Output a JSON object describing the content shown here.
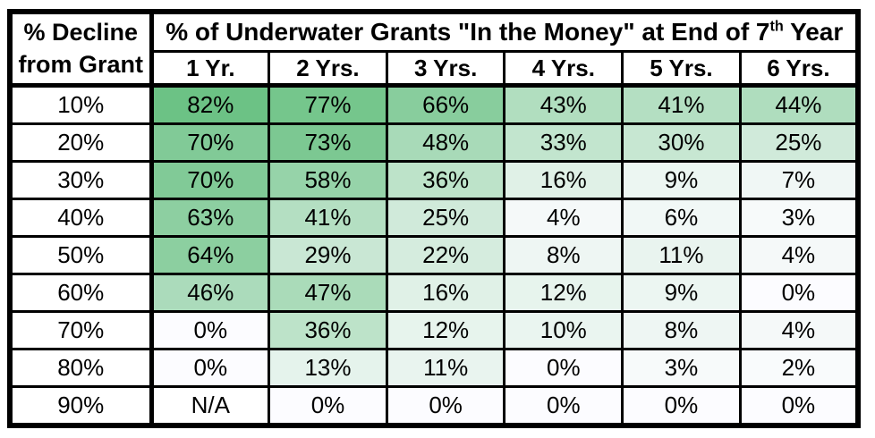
{
  "title_header": {
    "prefix": "% of Underwater Grants \"In the Money\" at End of 7",
    "superscript": "th",
    "suffix": " Year"
  },
  "corner_header": {
    "line1": "% Decline",
    "line2": "from Grant"
  },
  "col_headers": [
    "1 Yr.",
    "2 Yrs.",
    "3 Yrs.",
    "4 Yrs.",
    "5 Yrs.",
    "6 Yrs."
  ],
  "rows": [
    {
      "label": "10%",
      "values": [
        "82%",
        "77%",
        "66%",
        "43%",
        "41%",
        "44%"
      ],
      "colors": [
        "#6CC285",
        "#75C68C",
        "#88CD9D",
        "#B1DEBF",
        "#B4DFC2",
        "#AFDDBE"
      ]
    },
    {
      "label": "20%",
      "values": [
        "70%",
        "73%",
        "48%",
        "33%",
        "30%",
        "25%"
      ],
      "colors": [
        "#81CA97",
        "#7CC892",
        "#A8DAB8",
        "#C2E5CE",
        "#C7E7D2",
        "#D0EADA"
      ]
    },
    {
      "label": "30%",
      "values": [
        "70%",
        "58%",
        "36%",
        "16%",
        "9%",
        "7%"
      ],
      "colors": [
        "#81CA97",
        "#96D3A9",
        "#BDE3C9",
        "#E0F1E7",
        "#ECF6F2",
        "#F0F7F5"
      ]
    },
    {
      "label": "40%",
      "values": [
        "63%",
        "41%",
        "25%",
        "4%",
        "6%",
        "3%"
      ],
      "colors": [
        "#8DCFA1",
        "#B4DFC2",
        "#D0EADA",
        "#F5F9F9",
        "#F1F8F6",
        "#F7FAFA"
      ]
    },
    {
      "label": "50%",
      "values": [
        "64%",
        "29%",
        "22%",
        "8%",
        "11%",
        "4%"
      ],
      "colors": [
        "#8CCFA0",
        "#C9E7D4",
        "#D5ECDE",
        "#EEF6F3",
        "#E9F4EF",
        "#F5F9F9"
      ]
    },
    {
      "label": "60%",
      "values": [
        "46%",
        "47%",
        "16%",
        "12%",
        "9%",
        "0%"
      ],
      "colors": [
        "#ABDBBB",
        "#AADBB9",
        "#E0F1E7",
        "#E7F4ED",
        "#ECF6F2",
        "#FCFCFF"
      ]
    },
    {
      "label": "70%",
      "values": [
        "0%",
        "36%",
        "12%",
        "10%",
        "8%",
        "4%"
      ],
      "colors": [
        "#FCFCFF",
        "#BDE3C9",
        "#E7F4ED",
        "#EAF5F0",
        "#EEF6F3",
        "#F5F9F9"
      ]
    },
    {
      "label": "80%",
      "values": [
        "0%",
        "13%",
        "11%",
        "0%",
        "3%",
        "2%"
      ],
      "colors": [
        "#FCFCFF",
        "#E5F3EC",
        "#E9F4EF",
        "#FCFCFF",
        "#F7FAFA",
        "#F9FBFC"
      ]
    },
    {
      "label": "90%",
      "values": [
        "N/A",
        "0%",
        "0%",
        "0%",
        "0%",
        "0%"
      ],
      "colors": [
        "#FFFFFF",
        "#FCFCFF",
        "#FCFCFF",
        "#FCFCFF",
        "#FCFCFF",
        "#FCFCFF"
      ]
    }
  ],
  "colors": {
    "border": "#000000",
    "scale_min": "#FCFCFF",
    "scale_max": "#6CC285",
    "na_background": "#FFFFFF",
    "text": "#000000"
  },
  "chart_data": {
    "type": "heatmap",
    "title": "% of Underwater Grants \"In the Money\" at End of 7th Year",
    "row_axis_label": "% Decline from Grant",
    "rows": [
      "10%",
      "20%",
      "30%",
      "40%",
      "50%",
      "60%",
      "70%",
      "80%",
      "90%"
    ],
    "columns": [
      "1 Yr.",
      "2 Yrs.",
      "3 Yrs.",
      "4 Yrs.",
      "5 Yrs.",
      "6 Yrs."
    ],
    "values": [
      [
        82,
        77,
        66,
        43,
        41,
        44
      ],
      [
        70,
        73,
        48,
        33,
        30,
        25
      ],
      [
        70,
        58,
        36,
        16,
        9,
        7
      ],
      [
        63,
        41,
        25,
        4,
        6,
        3
      ],
      [
        64,
        29,
        22,
        8,
        11,
        4
      ],
      [
        46,
        47,
        16,
        12,
        9,
        0
      ],
      [
        0,
        36,
        12,
        10,
        8,
        4
      ],
      [
        0,
        13,
        11,
        0,
        3,
        2
      ],
      [
        null,
        0,
        0,
        0,
        0,
        0
      ]
    ],
    "na_cells": [
      [
        8,
        0
      ]
    ],
    "color_scale": {
      "min": 0,
      "max": 82,
      "min_color": "#FCFCFF",
      "max_color": "#6CC285"
    },
    "unit": "%",
    "grid": true,
    "legend": false
  }
}
